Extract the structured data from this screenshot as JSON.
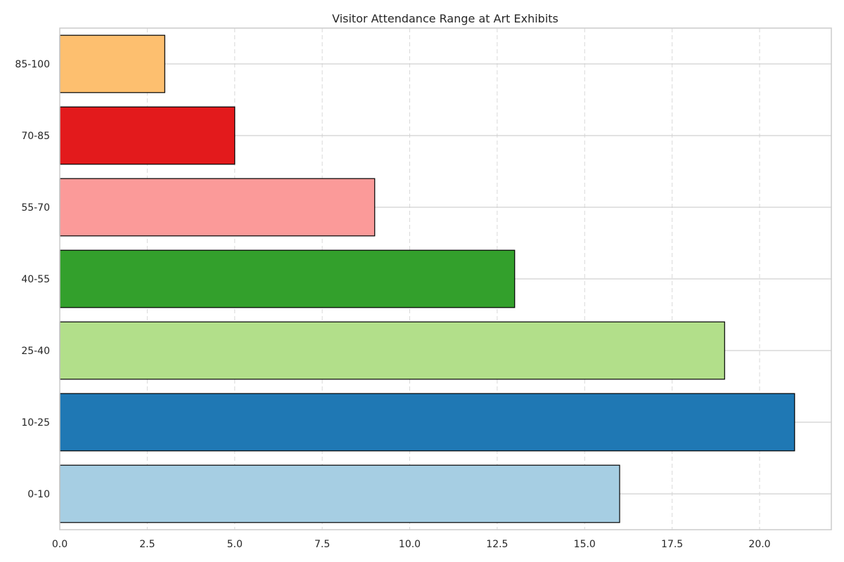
{
  "chart_data": {
    "type": "bar",
    "orientation": "horizontal",
    "title": "Visitor Attendance Range at Art Exhibits",
    "xlabel": "",
    "ylabel": "",
    "categories": [
      "0-10",
      "10-25",
      "25-40",
      "40-55",
      "55-70",
      "70-85",
      "85-100"
    ],
    "values": [
      16,
      21,
      19,
      13,
      9,
      5,
      3
    ],
    "colors": [
      "#a6cee3",
      "#1f78b4",
      "#b2df8a",
      "#33a02c",
      "#fb9a99",
      "#e31a1c",
      "#fdbf6f"
    ],
    "xlim": [
      0,
      22.05
    ],
    "xticks": [
      "0.0",
      "2.5",
      "5.0",
      "7.5",
      "10.0",
      "12.5",
      "15.0",
      "17.5",
      "20.0"
    ],
    "grid": true,
    "legend": "none"
  }
}
